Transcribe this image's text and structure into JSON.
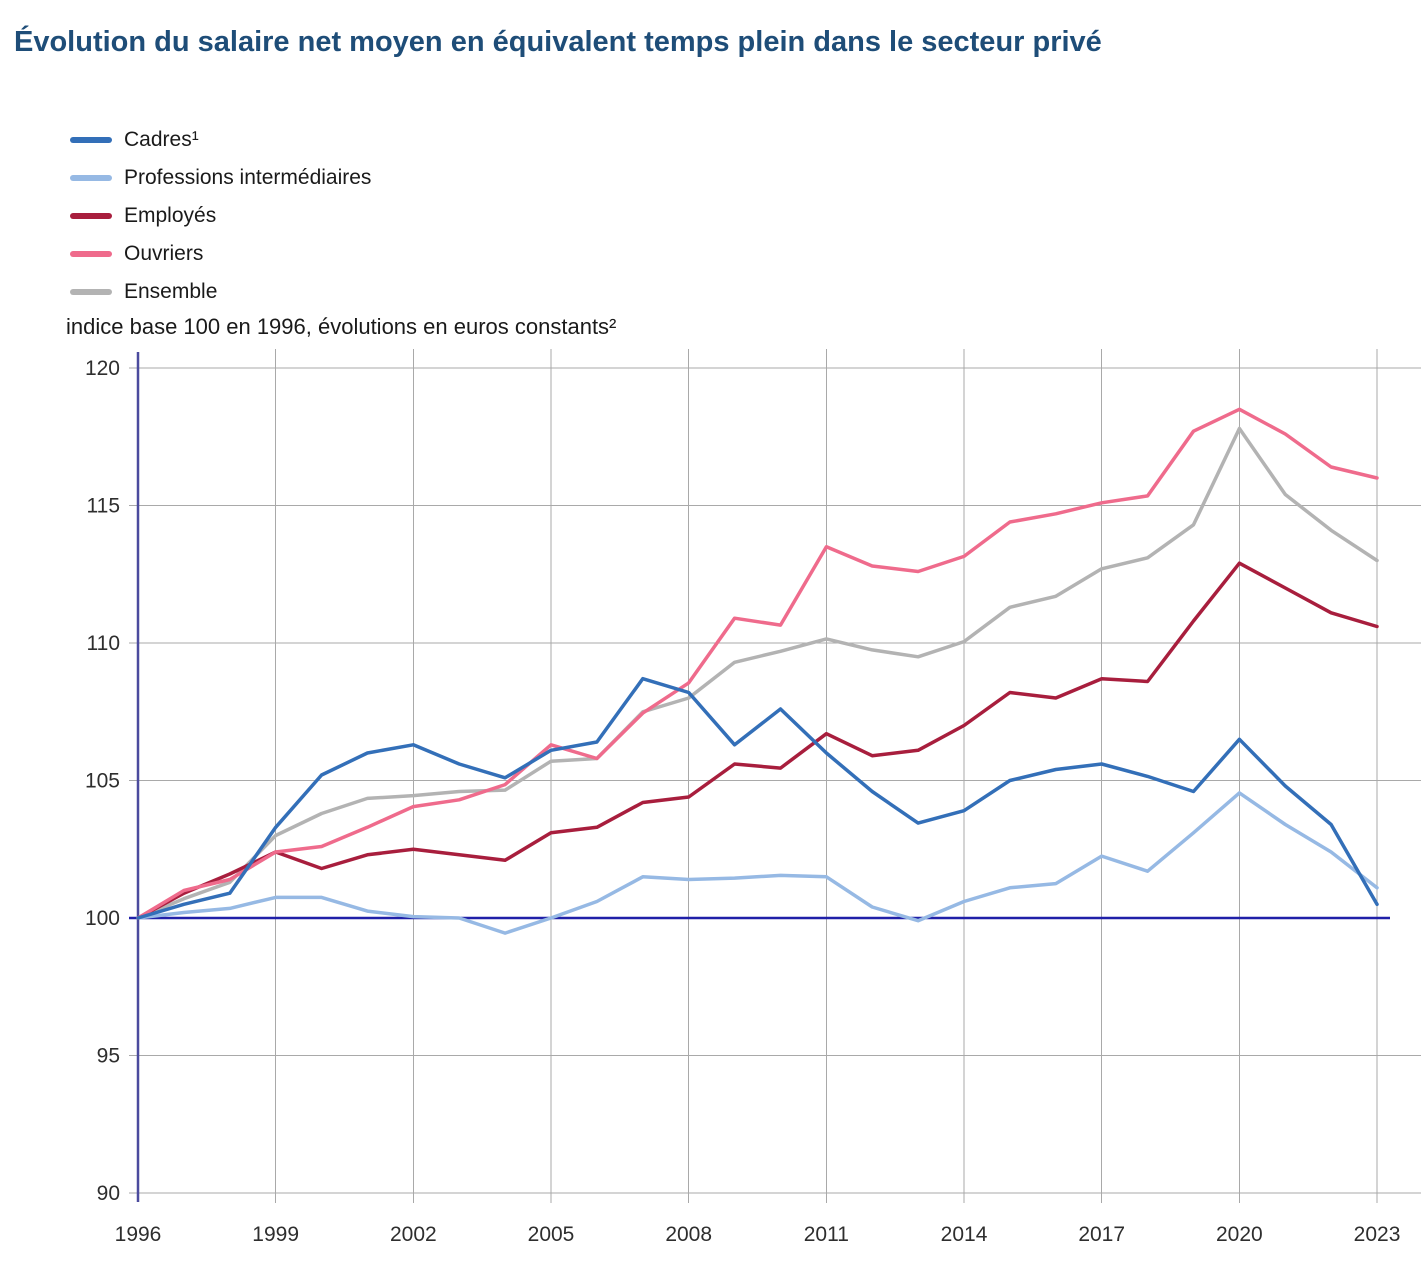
{
  "title": "Évolution du salaire net moyen en équivalent temps plein dans le secteur privé",
  "subtitle": "indice base 100 en 1996, évolutions en euros constants²",
  "colors": {
    "title": "#1e4d78",
    "grid": "#a9a9a9",
    "axis": "#4b4b9e",
    "baseline": "#2020a8",
    "tick_text": "#2e2e2e",
    "legend_text": "#1a1a1a"
  },
  "chart_data": {
    "type": "line",
    "x": [
      1996,
      1997,
      1998,
      1999,
      2000,
      2001,
      2002,
      2003,
      2004,
      2005,
      2006,
      2007,
      2008,
      2009,
      2010,
      2011,
      2012,
      2013,
      2014,
      2015,
      2016,
      2017,
      2018,
      2019,
      2020,
      2021,
      2022,
      2023
    ],
    "series": [
      {
        "id": "cadres",
        "name": "Cadres¹",
        "color": "#336fb8",
        "values": [
          100,
          100.5,
          100.9,
          103.3,
          105.2,
          106,
          106.3,
          105.6,
          105.1,
          106.1,
          106.4,
          108.7,
          108.2,
          106.3,
          107.6,
          106,
          104.6,
          103.45,
          103.9,
          105,
          105.4,
          105.6,
          105.15,
          104.6,
          106.5,
          104.8,
          103.4,
          100.5
        ]
      },
      {
        "id": "professions-intermediaires",
        "name": "Professions intermédiaires",
        "color": "#96b9e4",
        "values": [
          100,
          100.2,
          100.35,
          100.75,
          100.75,
          100.25,
          100.05,
          100,
          99.45,
          100,
          100.6,
          101.5,
          101.4,
          101.45,
          101.55,
          101.5,
          100.4,
          99.9,
          100.6,
          101.1,
          101.25,
          102.25,
          101.7,
          103.1,
          104.55,
          103.4,
          102.4,
          101.1
        ]
      },
      {
        "id": "employes",
        "name": "Employés",
        "color": "#a81e3d",
        "values": [
          100,
          100.9,
          101.6,
          102.4,
          101.8,
          102.3,
          102.5,
          102.3,
          102.1,
          103.1,
          103.3,
          104.2,
          104.4,
          105.6,
          105.45,
          106.7,
          105.9,
          106.1,
          107,
          108.2,
          108,
          108.7,
          108.6,
          110.8,
          112.9,
          112,
          111.1,
          110.6
        ]
      },
      {
        "id": "ouvriers",
        "name": "Ouvriers",
        "color": "#ef6b8c",
        "values": [
          100,
          101,
          101.4,
          102.4,
          102.6,
          103.3,
          104.05,
          104.3,
          104.85,
          106.3,
          105.8,
          107.45,
          108.55,
          110.9,
          110.65,
          113.5,
          112.8,
          112.6,
          113.15,
          114.4,
          114.7,
          115.1,
          115.35,
          117.7,
          118.5,
          117.6,
          116.4,
          116
        ]
      },
      {
        "id": "ensemble",
        "name": "Ensemble",
        "color": "#b3b3b3",
        "values": [
          100,
          100.7,
          101.3,
          103,
          103.8,
          104.35,
          104.45,
          104.6,
          104.65,
          105.7,
          105.8,
          107.5,
          108,
          109.3,
          109.7,
          110.15,
          109.75,
          109.5,
          110.05,
          111.3,
          111.7,
          112.7,
          113.1,
          114.3,
          117.8,
          115.4,
          114.1,
          113
        ]
      }
    ],
    "xticks": [
      1996,
      1999,
      2002,
      2005,
      2008,
      2011,
      2014,
      2017,
      2020,
      2023
    ],
    "yticks": [
      90,
      95,
      100,
      105,
      110,
      115,
      120
    ],
    "ylim": [
      90,
      121
    ],
    "xlabel": "",
    "ylabel": "",
    "grid": true,
    "legend_position": "top-left",
    "baseline": {
      "value": 100,
      "color": "#2020a8"
    }
  }
}
